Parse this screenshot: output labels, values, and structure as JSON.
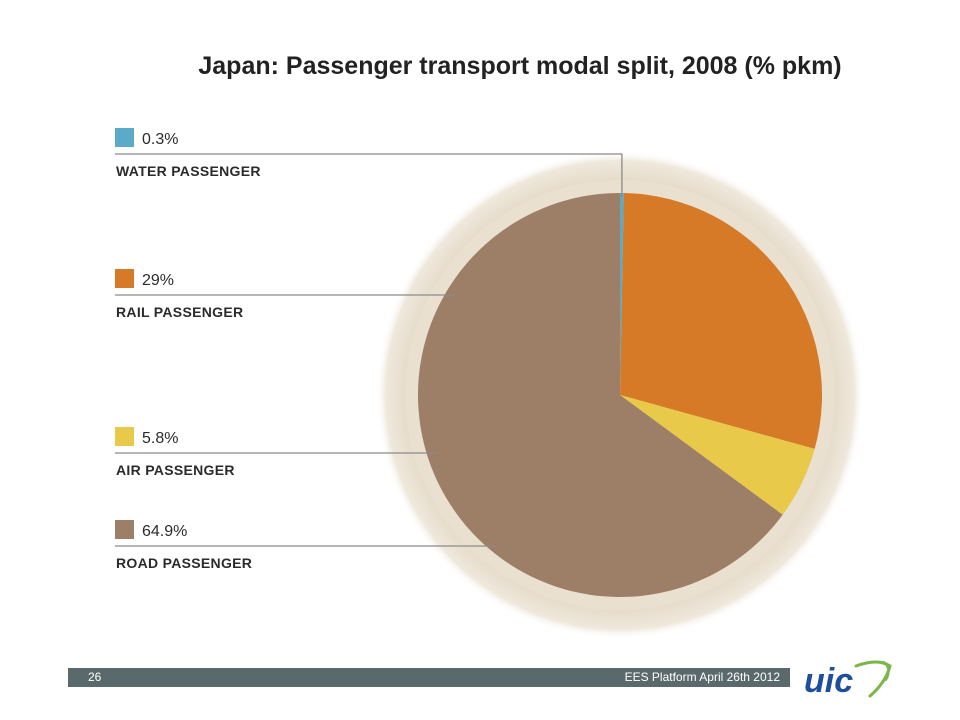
{
  "chart_data": {
    "type": "pie",
    "title": "Japan: Passenger transport modal split, 2008 (% pkm)",
    "slices": [
      {
        "label": "WATER PASSENGER",
        "value_label": "0.3%",
        "value": 0.3,
        "color": "#5aaac8"
      },
      {
        "label": "RAIL PASSENGER",
        "value_label": "29%",
        "value": 29,
        "color": "#d67a28"
      },
      {
        "label": "AIR PASSENGER",
        "value_label": "5.8%",
        "value": 5.8,
        "color": "#e8c94a"
      },
      {
        "label": "ROAD PASSENGER",
        "value_label": "64.9%",
        "value": 64.9,
        "color": "#9c7f66"
      }
    ]
  },
  "footer": {
    "page_number": "26",
    "event": "EES Platform April 26th 2012",
    "logo_text": "uic"
  }
}
